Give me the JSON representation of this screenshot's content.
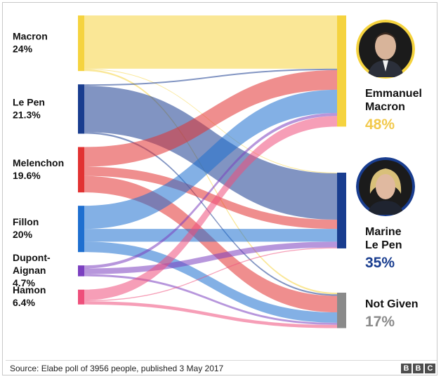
{
  "chart_data": {
    "type": "sankey",
    "sources": [
      {
        "name": "Macron",
        "value_label": "24%",
        "color": "#f5d33f"
      },
      {
        "name": "Le Pen",
        "value_label": "21.3%",
        "color": "#193d8f"
      },
      {
        "name": "Melenchon",
        "value_label": "19.6%",
        "color": "#e23232"
      },
      {
        "name": "Fillon",
        "value_label": "20%",
        "color": "#1e6fd0"
      },
      {
        "name": "Dupont-\nAignan",
        "value_label": "4.7%",
        "color": "#7b3fc0"
      },
      {
        "name": "Hamon",
        "value_label": "6.4%",
        "color": "#ee4f7b"
      }
    ],
    "targets": [
      {
        "name": "Emmanuel\nMacron",
        "value_label": "48%",
        "color": "#f5d33f",
        "label_color": "#f2c94c"
      },
      {
        "name": "Marine\nLe Pen",
        "value_label": "35%",
        "color": "#193d8f",
        "label_color": "#193d8f"
      },
      {
        "name": "Not Given",
        "value_label": "17%",
        "color": "#8a8a8a",
        "label_color": "#8a8a8a"
      }
    ],
    "flows": [
      {
        "from": "Macron",
        "to": "Emmanuel\nMacron",
        "value": 23.0
      },
      {
        "from": "Macron",
        "to": "Marine\nLe Pen",
        "value": 0.3
      },
      {
        "from": "Macron",
        "to": "Not Given",
        "value": 0.7
      },
      {
        "from": "Le Pen",
        "to": "Emmanuel\nMacron",
        "value": 0.6
      },
      {
        "from": "Le Pen",
        "to": "Marine\nLe Pen",
        "value": 20.0
      },
      {
        "from": "Le Pen",
        "to": "Not Given",
        "value": 0.7
      },
      {
        "from": "Melenchon",
        "to": "Emmanuel\nMacron",
        "value": 8.5
      },
      {
        "from": "Melenchon",
        "to": "Marine\nLe Pen",
        "value": 4.0
      },
      {
        "from": "Melenchon",
        "to": "Not Given",
        "value": 7.1
      },
      {
        "from": "Fillon",
        "to": "Emmanuel\nMacron",
        "value": 10.0
      },
      {
        "from": "Fillon",
        "to": "Marine\nLe Pen",
        "value": 5.5
      },
      {
        "from": "Fillon",
        "to": "Not Given",
        "value": 4.5
      },
      {
        "from": "Dupont-\nAignan",
        "to": "Emmanuel\nMacron",
        "value": 1.3
      },
      {
        "from": "Dupont-\nAignan",
        "to": "Marine\nLe Pen",
        "value": 2.5
      },
      {
        "from": "Dupont-\nAignan",
        "to": "Not Given",
        "value": 0.9
      },
      {
        "from": "Hamon",
        "to": "Emmanuel\nMacron",
        "value": 4.6
      },
      {
        "from": "Hamon",
        "to": "Marine\nLe Pen",
        "value": 0.4
      },
      {
        "from": "Hamon",
        "to": "Not Given",
        "value": 1.4
      }
    ]
  },
  "photos": [
    {
      "target": "Emmanuel\nMacron",
      "icon": "person-photo-macron"
    },
    {
      "target": "Marine\nLe Pen",
      "icon": "person-photo-le-pen"
    }
  ],
  "footer": {
    "source": "Source: Elabe poll of 3956 people, published 3 May 2017",
    "logo": [
      "B",
      "B",
      "C"
    ]
  }
}
